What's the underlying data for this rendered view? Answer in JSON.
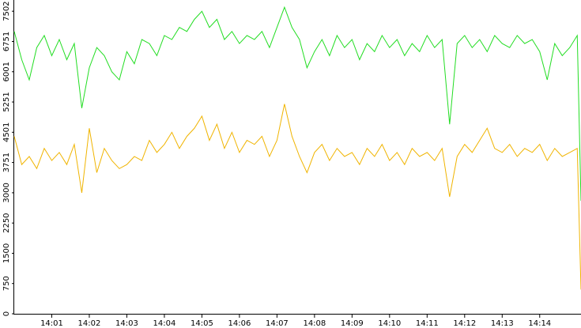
{
  "chart_data": {
    "type": "line",
    "x": [
      840,
      840.2,
      840.4,
      840.6,
      840.8,
      841,
      841.2,
      841.4,
      841.6,
      841.8,
      842,
      842.2,
      842.4,
      842.6,
      842.8,
      843,
      843.2,
      843.4,
      843.6,
      843.8,
      844,
      844.2,
      844.4,
      844.6,
      844.8,
      845,
      845.2,
      845.4,
      845.6,
      845.8,
      846,
      846.2,
      846.4,
      846.6,
      846.8,
      847,
      847.2,
      847.4,
      847.6,
      847.8,
      848,
      848.2,
      848.4,
      848.6,
      848.8,
      849,
      849.2,
      849.4,
      849.6,
      849.8,
      850,
      850.2,
      850.4,
      850.6,
      850.8,
      851,
      851.2,
      851.4,
      851.6,
      851.8,
      852,
      852.2,
      852.4,
      852.6,
      852.8,
      853,
      853.2,
      853.4,
      853.6,
      853.8,
      854,
      854.2,
      854.4,
      854.6,
      854.8,
      855,
      855.1
    ],
    "series": [
      {
        "color": "#22dd22",
        "values": [
          7000,
          6300,
          5800,
          6600,
          6900,
          6400,
          6800,
          6300,
          6700,
          5100,
          6100,
          6600,
          6400,
          6000,
          5800,
          6500,
          6200,
          6800,
          6700,
          6400,
          6900,
          6800,
          7100,
          7000,
          7300,
          7500,
          7100,
          7300,
          6800,
          7000,
          6700,
          6900,
          6800,
          7000,
          6600,
          7100,
          7600,
          7100,
          6800,
          6100,
          6500,
          6800,
          6400,
          6900,
          6600,
          6800,
          6300,
          6700,
          6500,
          6900,
          6600,
          6800,
          6400,
          6700,
          6500,
          6900,
          6600,
          6800,
          4700,
          6700,
          6900,
          6600,
          6800,
          6500,
          6900,
          6700,
          6600,
          6900,
          6700,
          6800,
          6500,
          5800,
          6700,
          6400,
          6600,
          6900,
          2800
        ]
      },
      {
        "color": "#f0b400",
        "values": [
          4400,
          3700,
          3900,
          3600,
          4100,
          3800,
          4000,
          3700,
          4200,
          3000,
          4600,
          3500,
          4100,
          3800,
          3600,
          3700,
          3900,
          3800,
          4300,
          4000,
          4200,
          4500,
          4100,
          4400,
          4600,
          4900,
          4300,
          4700,
          4100,
          4500,
          4000,
          4300,
          4200,
          4400,
          3900,
          4300,
          5200,
          4400,
          3900,
          3500,
          4000,
          4200,
          3800,
          4100,
          3900,
          4000,
          3700,
          4100,
          3900,
          4200,
          3800,
          4000,
          3700,
          4100,
          3900,
          4000,
          3800,
          4100,
          2900,
          3900,
          4200,
          4000,
          4300,
          4600,
          4100,
          4000,
          4200,
          3900,
          4100,
          4000,
          4200,
          3800,
          4100,
          3900,
          4000,
          4100,
          600
        ]
      }
    ],
    "xlim": [
      840,
      855.1
    ],
    "xticks": [
      {
        "value": 841,
        "label": "14:01"
      },
      {
        "value": 842,
        "label": "14:02"
      },
      {
        "value": 843,
        "label": "14:03"
      },
      {
        "value": 844,
        "label": "14:04"
      },
      {
        "value": 845,
        "label": "14:05"
      },
      {
        "value": 846,
        "label": "14:06"
      },
      {
        "value": 847,
        "label": "14:07"
      },
      {
        "value": 848,
        "label": "14:08"
      },
      {
        "value": 849,
        "label": "14:09"
      },
      {
        "value": 850,
        "label": "14:10"
      },
      {
        "value": 851,
        "label": "14:11"
      },
      {
        "value": 852,
        "label": "14:12"
      },
      {
        "value": 853,
        "label": "14:13"
      },
      {
        "value": 854,
        "label": "14:14"
      }
    ],
    "ylim": [
      0,
      7780
    ],
    "yticks": [
      0,
      750,
      1500,
      2250,
      3000,
      3751,
      4501,
      5251,
      6001,
      6751,
      7502
    ]
  }
}
